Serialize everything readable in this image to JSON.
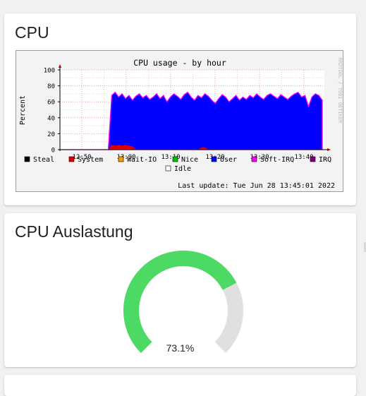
{
  "cpu_card": {
    "title": "CPU",
    "graph": {
      "title": "CPU usage - by hour",
      "ylabel": "Percent",
      "watermark": "RRDTOOL / TOBI OETIKER",
      "last_update": "Last update: Tue Jun 28 13:45:01 2022",
      "y_ticks": [
        "0",
        "20",
        "40",
        "60",
        "80",
        "100"
      ],
      "x_ticks": [
        "12:50",
        "13:00",
        "13:10",
        "13:20",
        "13:30",
        "13:40"
      ],
      "legend": [
        {
          "label": "Steal",
          "color": "#000000"
        },
        {
          "label": "System",
          "color": "#e00000"
        },
        {
          "label": "Wait-IO",
          "color": "#f0a000"
        },
        {
          "label": "Nice",
          "color": "#00c000"
        },
        {
          "label": "User",
          "color": "#0000ff"
        },
        {
          "label": "Soft-IRQ",
          "color": "#ff00ff"
        },
        {
          "label": "IRQ",
          "color": "#800080"
        },
        {
          "label": "Idle",
          "color": "#ffffff"
        }
      ]
    }
  },
  "chart_data": {
    "type": "area",
    "title": "CPU usage - by hour",
    "ylabel": "Percent",
    "ylim": [
      0,
      100
    ],
    "x_ticks": [
      "12:50",
      "13:00",
      "13:10",
      "13:20",
      "13:30",
      "13:40"
    ],
    "grid": true,
    "series": [
      {
        "name": "User",
        "color": "#0000ff",
        "values": [
          0,
          0,
          0,
          0,
          0,
          0,
          0,
          0,
          0,
          0,
          0,
          0,
          0,
          0,
          0,
          68,
          72,
          66,
          70,
          64,
          68,
          62,
          67,
          70,
          65,
          68,
          63,
          66,
          70,
          64,
          68,
          60,
          66,
          70,
          67,
          63,
          69,
          72,
          66,
          62,
          68,
          65,
          70,
          67,
          62,
          58,
          64,
          69,
          66,
          60,
          64,
          68,
          62,
          66,
          63,
          68,
          65,
          70,
          66,
          63,
          68,
          70,
          67,
          64,
          69,
          66,
          63,
          67,
          70,
          72,
          66,
          68,
          54,
          66,
          70,
          68,
          62
        ]
      },
      {
        "name": "System",
        "color": "#e00000",
        "values": [
          0,
          0,
          0,
          0,
          0,
          0,
          0,
          0,
          0,
          0,
          0,
          0,
          0,
          0,
          0,
          6,
          5,
          6,
          5,
          6,
          5,
          4,
          0,
          0,
          0,
          0,
          0,
          0,
          0,
          0,
          0,
          0,
          0,
          0,
          0,
          0,
          0,
          0,
          0,
          0,
          0,
          3,
          3,
          0,
          0,
          0,
          0,
          0,
          0,
          0,
          0,
          0,
          0,
          0,
          0,
          0,
          0,
          0,
          0,
          0,
          0,
          0,
          0,
          0,
          0,
          0,
          0,
          0,
          0,
          0,
          0,
          0,
          0,
          0,
          0,
          0,
          0
        ]
      }
    ]
  },
  "gauge_card": {
    "title": "CPU Auslastung",
    "value": 73.1,
    "value_label": "73.1%",
    "fill_color": "#4cd964",
    "track_color": "#e0e0e0"
  }
}
